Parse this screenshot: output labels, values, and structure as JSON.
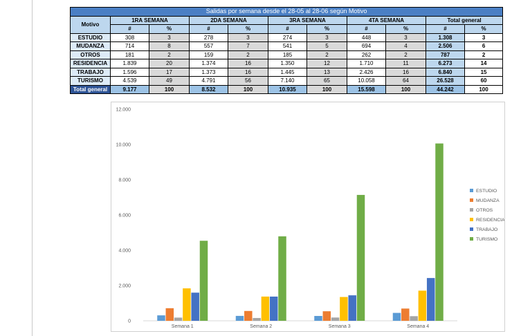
{
  "table": {
    "title": "Salidas por semana desde el 28-05 al 28-06 según Motivo",
    "motivo_header": "Motivo",
    "week_headers": [
      "1RA SEMANA",
      "2DA SEMANA",
      "3RA SEMANA",
      "4TA SEMANA"
    ],
    "total_header": "Total general",
    "sub_num": "#",
    "sub_pct": "%",
    "rows": [
      {
        "label": "ESTUDIO",
        "cells": [
          "308",
          "3",
          "278",
          "3",
          "274",
          "3",
          "448",
          "3"
        ],
        "tg_num": "1.308",
        "tg_pct": "3"
      },
      {
        "label": "MUDANZA",
        "cells": [
          "714",
          "8",
          "557",
          "7",
          "541",
          "5",
          "694",
          "4"
        ],
        "tg_num": "2.506",
        "tg_pct": "6"
      },
      {
        "label": "OTROS",
        "cells": [
          "181",
          "2",
          "159",
          "2",
          "185",
          "2",
          "262",
          "2"
        ],
        "tg_num": "787",
        "tg_pct": "2"
      },
      {
        "label": "RESIDENCIA",
        "cells": [
          "1.839",
          "20",
          "1.374",
          "16",
          "1.350",
          "12",
          "1.710",
          "11"
        ],
        "tg_num": "6.273",
        "tg_pct": "14"
      },
      {
        "label": "TRABAJO",
        "cells": [
          "1.596",
          "17",
          "1.373",
          "16",
          "1.445",
          "13",
          "2.426",
          "16"
        ],
        "tg_num": "6.840",
        "tg_pct": "15"
      },
      {
        "label": "TURISMO",
        "cells": [
          "4.539",
          "49",
          "4.791",
          "56",
          "7.140",
          "65",
          "10.058",
          "64"
        ],
        "tg_num": "26.528",
        "tg_pct": "60"
      }
    ],
    "total_row": {
      "label": "Total general",
      "cells": [
        "9.177",
        "100",
        "8.532",
        "100",
        "10.935",
        "100",
        "15.598",
        "100"
      ],
      "tg_num": "44.242",
      "tg_pct": "100"
    }
  },
  "chart_data": {
    "type": "bar",
    "categories": [
      "Semana 1",
      "Semana 2",
      "Semana 3",
      "Semana 4"
    ],
    "series": [
      {
        "name": "ESTUDIO",
        "color": "#5b9bd5",
        "values": [
          308,
          278,
          274,
          448
        ]
      },
      {
        "name": "MUDANZA",
        "color": "#ed7d31",
        "values": [
          714,
          557,
          541,
          694
        ]
      },
      {
        "name": "OTROS",
        "color": "#a5a5a5",
        "values": [
          181,
          159,
          185,
          262
        ]
      },
      {
        "name": "RESIDENCIA",
        "color": "#ffc000",
        "values": [
          1839,
          1374,
          1350,
          1710
        ]
      },
      {
        "name": "TRABAJO",
        "color": "#4472c4",
        "values": [
          1596,
          1373,
          1445,
          2426
        ]
      },
      {
        "name": "TURISMO",
        "color": "#70ad47",
        "values": [
          4539,
          4791,
          7140,
          10058
        ]
      }
    ],
    "yticks": [
      "0",
      "2.000",
      "4.000",
      "6.000",
      "8.000",
      "10.000",
      "12.000"
    ],
    "ylim": [
      0,
      12000
    ],
    "grid": false,
    "legend": "right"
  }
}
